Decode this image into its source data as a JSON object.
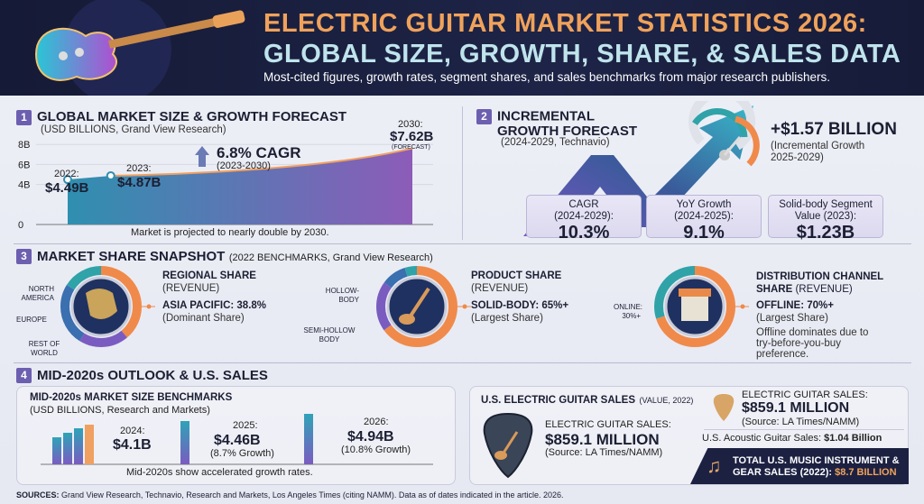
{
  "header": {
    "title_line1": "ELECTRIC GUITAR MARKET STATISTICS 2026:",
    "title_line2": "GLOBAL SIZE, GROWTH, SHARE, & SALES DATA",
    "subtitle": "Most-cited figures, growth rates, segment shares, and sales benchmarks from major research publishers."
  },
  "s1": {
    "num": "1",
    "title": "GLOBAL MARKET SIZE & GROWTH FORECAST",
    "source": "(USD BILLIONS, Grand View Research)",
    "cagr": "6.8% CAGR",
    "cagr_period": "(2023-2030)",
    "note": "Market is projected to nearly double by 2030.",
    "points": [
      {
        "year": "2022:",
        "value": "$4.49B"
      },
      {
        "year": "2023:",
        "value": "$4.87B"
      },
      {
        "year": "2030:",
        "value": "$7.62B",
        "tag": "(FORECAST)"
      }
    ]
  },
  "chart_data": {
    "type": "area",
    "x": [
      2022,
      2023,
      2030
    ],
    "values": [
      4.49,
      4.87,
      7.62
    ],
    "ylim": [
      0,
      8
    ],
    "yticks": [
      "0",
      "4B",
      "6B",
      "8B"
    ],
    "ytick_values": [
      0,
      4,
      6,
      8
    ],
    "grid": true
  },
  "s2": {
    "num": "2",
    "title1": "INCREMENTAL",
    "title2": "GROWTH FORECAST",
    "source": "(2024-2029, Technavio)",
    "headline": "+$1.57 BILLION",
    "headline_sub1": "(Incremental Growth",
    "headline_sub2": "2025-2029)",
    "cards": [
      {
        "l1": "CAGR",
        "l2": "(2024-2029):",
        "v": "10.3%"
      },
      {
        "l1": "YoY Growth",
        "l2": "(2024-2025):",
        "v": "9.1%"
      },
      {
        "l1": "Solid-body Segment",
        "l2": "Value (2023):",
        "v": "$1.23B"
      }
    ]
  },
  "s3": {
    "num": "3",
    "title": "MARKET SHARE SNAPSHOT",
    "source": "(2022 BENCHMARKS, Grand View Research)",
    "regional": {
      "title": "REGIONAL SHARE",
      "sub": "(REVENUE)",
      "value": "ASIA PACIFIC: 38.8%",
      "note": "(Dominant Share)",
      "labels": [
        "NORTH AMERICA",
        "EUROPE",
        "REST OF WORLD"
      ]
    },
    "product": {
      "title": "PRODUCT SHARE",
      "sub": "(REVENUE)",
      "value": "SOLID-BODY: 65%+",
      "note": "(Largest Share)",
      "labels": [
        "HOLLOW-BODY",
        "SEMI-HOLLOW BODY"
      ]
    },
    "distribution": {
      "title": "DISTRIBUTION CHANNEL",
      "title2": "SHARE",
      "sub": "(REVENUE)",
      "value": "OFFLINE: 70%+",
      "note": "(Largest Share)",
      "online1": "ONLINE:",
      "online2": "30%+",
      "desc1": "Offline dominates due to",
      "desc2": "try-before-you-buy",
      "desc3": "preference."
    },
    "colors": {
      "orange": "#f08a4b",
      "teal": "#2fa3a8",
      "purple": "#7a5cc0",
      "blue": "#3a6fb0"
    }
  },
  "s4": {
    "num": "4",
    "title": "MID-2020s OUTLOOK & U.S. SALES",
    "bench": {
      "title": "MID-2020s MARKET SIZE BENCHMARKS",
      "source": "(USD BILLIONS, Research and Markets)",
      "items": [
        {
          "year": "2024:",
          "value": "$4.1B"
        },
        {
          "year": "2025:",
          "value": "$4.46B",
          "growth": "(8.7% Growth)"
        },
        {
          "year": "2026:",
          "value": "$4.94B",
          "growth": "(10.8% Growth)"
        }
      ],
      "note": "Mid-2020s show accelerated growth rates."
    },
    "us": {
      "title": "U.S. ELECTRIC GUITAR SALES",
      "title_sub": "(VALUE, 2022)",
      "label": "ELECTRIC GUITAR SALES:",
      "value": "$859.1 MILLION",
      "source": "(Source: LA Times/NAMM)",
      "label2": "ELECTRIC GUITAR SALES:",
      "value2": "$859.1 MILLION",
      "source2": "(Source: LA Times/NAMM)",
      "acoustic_label": "U.S. Acoustic Guitar Sales:",
      "acoustic_value": "$1.04 Billion",
      "total1": "TOTAL U.S. MUSIC INSTRUMENT &",
      "total2": "GEAR SALES (2022):",
      "total_value": "$8.7 BILLION"
    }
  },
  "sources": {
    "label": "SOURCES:",
    "text": "Grand View Research, Technavio, Research and Markets, Los Angeles Times (citing NAMM). Data as of dates indicated in the article. 2026."
  }
}
